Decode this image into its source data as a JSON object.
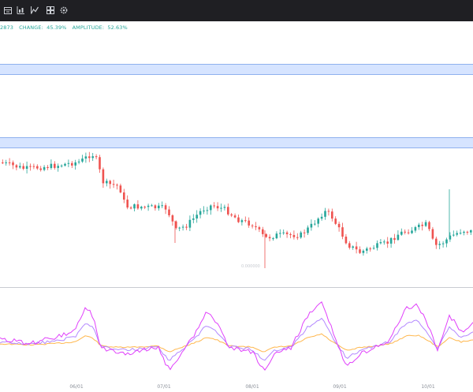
{
  "toolbar": {
    "icons": [
      "indicators-icon",
      "chart-type-icon",
      "drawing-tools-icon",
      "layout-icon",
      "settings-icon"
    ]
  },
  "stats": {
    "price": "2873",
    "change_label": "CHANGE:",
    "change_value": "45.39%",
    "amplitude_label": "AMPLITUDE:",
    "amplitude_value": "52.63%"
  },
  "colors": {
    "up": "#26a69a",
    "down": "#ef5350",
    "zone_fill": "#d6e4ff",
    "osc_1": "#e040fb",
    "osc_2": "#b388ff",
    "osc_3": "#ffb74d"
  },
  "watermark": "0.000000",
  "x_axis": {
    "ticks": [
      "06/01",
      "07/01",
      "08/01",
      "09/01",
      "10/01"
    ]
  }
}
